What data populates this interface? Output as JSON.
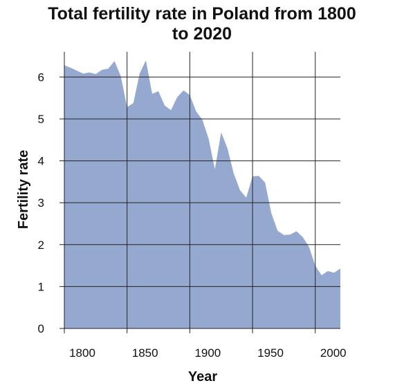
{
  "chart_data": {
    "type": "area",
    "title_line1": "Total fertility rate in Poland from 1800",
    "title_line2": "to 2020",
    "xlabel": "Year",
    "ylabel": "Fertility rate",
    "xlim": [
      1800,
      2020
    ],
    "ylim": [
      0,
      6.6
    ],
    "x_ticks": [
      1800,
      1850,
      1900,
      1950,
      2000
    ],
    "y_ticks": [
      0,
      1,
      2,
      3,
      4,
      5,
      6
    ],
    "grid": true,
    "fill_color": "#94a8d0",
    "series": [
      {
        "x": [
          1800,
          1805,
          1810,
          1815,
          1820,
          1825,
          1830,
          1835,
          1840,
          1845,
          1850,
          1855,
          1860,
          1865,
          1870,
          1875,
          1880,
          1885,
          1890,
          1895,
          1900,
          1905,
          1910,
          1915,
          1920,
          1925,
          1930,
          1935,
          1940,
          1945,
          1950,
          1955,
          1960,
          1965,
          1970,
          1975,
          1980,
          1985,
          1990,
          1995,
          2000,
          2005,
          2010,
          2015,
          2020
        ],
        "y": [
          6.28,
          6.22,
          6.15,
          6.08,
          6.11,
          6.07,
          6.17,
          6.2,
          6.38,
          6.02,
          5.28,
          5.38,
          6.08,
          6.4,
          5.6,
          5.66,
          5.32,
          5.21,
          5.52,
          5.68,
          5.57,
          5.18,
          4.98,
          4.53,
          3.8,
          4.68,
          4.3,
          3.7,
          3.3,
          3.12,
          3.63,
          3.64,
          3.48,
          2.75,
          2.33,
          2.23,
          2.24,
          2.32,
          2.18,
          1.95,
          1.5,
          1.27,
          1.37,
          1.33,
          1.43
        ]
      }
    ]
  }
}
